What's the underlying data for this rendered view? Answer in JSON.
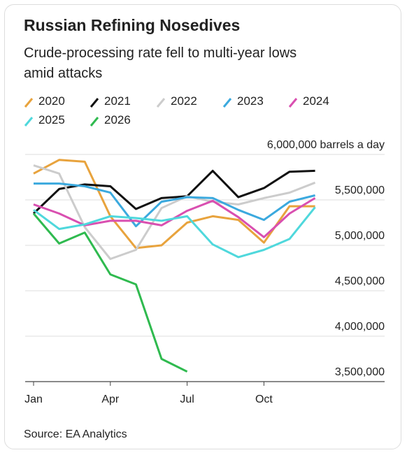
{
  "chart_data": {
    "type": "line",
    "title": "Russian Refining Nosedives",
    "subtitle": "Crude-processing rate fell to multi-year lows amid attacks",
    "source": "Source: EA Analytics",
    "categories": [
      "Jan",
      null,
      null,
      "Apr",
      null,
      null,
      "Jul",
      null,
      null,
      "Oct",
      null,
      null
    ],
    "ylim": [
      3500000,
      6000000
    ],
    "yticks": [
      {
        "value": 3500000,
        "label": "3,500,000"
      },
      {
        "value": 4000000,
        "label": "4,000,000"
      },
      {
        "value": 4500000,
        "label": "4,500,000"
      },
      {
        "value": 5000000,
        "label": "5,000,000"
      },
      {
        "value": 5500000,
        "label": "5,500,000"
      },
      {
        "value": 6000000,
        "label": "6,000,000 barrels a day"
      }
    ],
    "grid": true,
    "series": [
      {
        "name": "2020",
        "color": "#e8a33d",
        "values": [
          5790000,
          5940000,
          5920000,
          5320000,
          4970000,
          5000000,
          5250000,
          5320000,
          5280000,
          5030000,
          5430000,
          5430000
        ]
      },
      {
        "name": "2021",
        "color": "#111111",
        "values": [
          5350000,
          5620000,
          5670000,
          5650000,
          5400000,
          5520000,
          5540000,
          5820000,
          5530000,
          5630000,
          5810000,
          5820000
        ]
      },
      {
        "name": "2022",
        "color": "#cccccc",
        "values": [
          5880000,
          5790000,
          5200000,
          4850000,
          4950000,
          5410000,
          5540000,
          5480000,
          5450000,
          5520000,
          5580000,
          5690000
        ]
      },
      {
        "name": "2023",
        "color": "#3ba9de",
        "values": [
          5680000,
          5680000,
          5650000,
          5580000,
          5210000,
          5480000,
          5530000,
          5520000,
          5390000,
          5280000,
          5480000,
          5550000
        ]
      },
      {
        "name": "2024",
        "color": "#d94fb0",
        "values": [
          5450000,
          5350000,
          5220000,
          5270000,
          5270000,
          5220000,
          5380000,
          5490000,
          5310000,
          5090000,
          5350000,
          5520000
        ]
      },
      {
        "name": "2025",
        "color": "#4fd8dc",
        "values": [
          5390000,
          5180000,
          5230000,
          5320000,
          5300000,
          5270000,
          5320000,
          5010000,
          4870000,
          4950000,
          5070000,
          5420000
        ]
      },
      {
        "name": "2026",
        "color": "#2fba4f",
        "values": [
          5350000,
          5020000,
          5140000,
          4680000,
          4570000,
          3750000,
          3610000,
          null,
          null,
          null,
          null,
          null
        ]
      }
    ]
  }
}
